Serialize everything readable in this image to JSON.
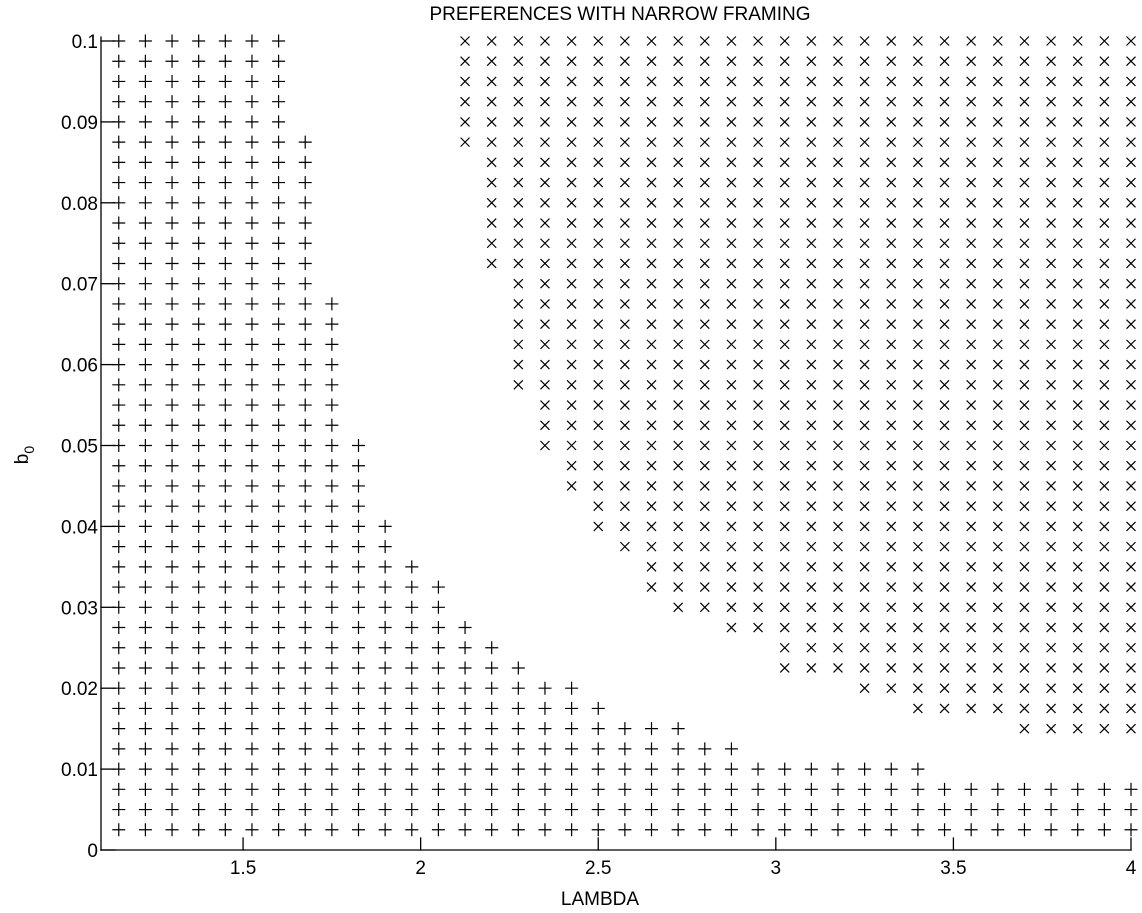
{
  "chart_data": {
    "type": "scatter",
    "title": "PREFERENCES WITH NARROW FRAMING",
    "xlabel": "LAMBDA",
    "ylabel": {
      "main": "b",
      "subscript": "0"
    },
    "xlim": [
      1.1,
      4.0
    ],
    "ylim": [
      0.0,
      0.1
    ],
    "x_ticks": [
      {
        "value": 1.5,
        "label": "1.5"
      },
      {
        "value": 2.0,
        "label": "2"
      },
      {
        "value": 2.5,
        "label": "2.5"
      },
      {
        "value": 3.0,
        "label": "3"
      },
      {
        "value": 3.5,
        "label": "3.5"
      },
      {
        "value": 4.0,
        "label": "4"
      }
    ],
    "y_ticks": [
      {
        "value": 0.0,
        "label": "0"
      },
      {
        "value": 0.01,
        "label": "0.01"
      },
      {
        "value": 0.02,
        "label": "0.02"
      },
      {
        "value": 0.03,
        "label": "0.03"
      },
      {
        "value": 0.04,
        "label": "0.04"
      },
      {
        "value": 0.05,
        "label": "0.05"
      },
      {
        "value": 0.06,
        "label": "0.06"
      },
      {
        "value": 0.07,
        "label": "0.07"
      },
      {
        "value": 0.08,
        "label": "0.08"
      },
      {
        "value": 0.09,
        "label": "0.09"
      },
      {
        "value": 0.1,
        "label": "0.1"
      }
    ],
    "grid": false,
    "legend": "none",
    "grid_x_values": {
      "start": 1.15,
      "step": 0.075,
      "count": 40
    },
    "grid_y_values": {
      "start": 0.0,
      "step": 0.0025,
      "count": 41
    },
    "series": [
      {
        "marker": "plus",
        "rule": "points with b_0 greater than 0 whose lambda is at or below the listed threshold for that b_0 level",
        "lambda_max_by_level": [
          {
            "b0": 0.0025,
            "lambda_max": 4.0
          },
          {
            "b0": 0.005,
            "lambda_max": 4.0
          },
          {
            "b0": 0.0075,
            "lambda_max": 4.0
          },
          {
            "b0": 0.01,
            "lambda_max": 3.4
          },
          {
            "b0": 0.0125,
            "lambda_max": 2.875
          },
          {
            "b0": 0.015,
            "lambda_max": 2.725
          },
          {
            "b0": 0.0175,
            "lambda_max": 2.5
          },
          {
            "b0": 0.02,
            "lambda_max": 2.425
          },
          {
            "b0": 0.0225,
            "lambda_max": 2.275
          },
          {
            "b0": 0.025,
            "lambda_max": 2.2
          },
          {
            "b0": 0.0275,
            "lambda_max": 2.125
          },
          {
            "b0": 0.03,
            "lambda_max": 2.05
          },
          {
            "b0": 0.0325,
            "lambda_max": 2.05
          },
          {
            "b0": 0.035,
            "lambda_max": 1.975
          },
          {
            "b0": 0.0375,
            "lambda_max": 1.9
          },
          {
            "b0": 0.04,
            "lambda_max": 1.9
          },
          {
            "b0": 0.0425,
            "lambda_max": 1.825
          },
          {
            "b0": 0.045,
            "lambda_max": 1.825
          },
          {
            "b0": 0.0475,
            "lambda_max": 1.825
          },
          {
            "b0": 0.05,
            "lambda_max": 1.825
          },
          {
            "b0": 0.0525,
            "lambda_max": 1.75
          },
          {
            "b0": 0.055,
            "lambda_max": 1.75
          },
          {
            "b0": 0.0575,
            "lambda_max": 1.75
          },
          {
            "b0": 0.06,
            "lambda_max": 1.75
          },
          {
            "b0": 0.0625,
            "lambda_max": 1.75
          },
          {
            "b0": 0.065,
            "lambda_max": 1.75
          },
          {
            "b0": 0.0675,
            "lambda_max": 1.75
          },
          {
            "b0": 0.07,
            "lambda_max": 1.675
          },
          {
            "b0": 0.0725,
            "lambda_max": 1.675
          },
          {
            "b0": 0.075,
            "lambda_max": 1.675
          },
          {
            "b0": 0.0775,
            "lambda_max": 1.675
          },
          {
            "b0": 0.08,
            "lambda_max": 1.675
          },
          {
            "b0": 0.0825,
            "lambda_max": 1.675
          },
          {
            "b0": 0.085,
            "lambda_max": 1.675
          },
          {
            "b0": 0.0875,
            "lambda_max": 1.675
          },
          {
            "b0": 0.09,
            "lambda_max": 1.6
          },
          {
            "b0": 0.0925,
            "lambda_max": 1.6
          },
          {
            "b0": 0.095,
            "lambda_max": 1.6
          },
          {
            "b0": 0.0975,
            "lambda_max": 1.6
          },
          {
            "b0": 0.1,
            "lambda_max": 1.6
          }
        ]
      },
      {
        "marker": "cross",
        "rule": "points whose lambda is at or above the listed threshold for that b_0 level",
        "lambda_min_by_level": [
          {
            "b0": 0.015,
            "lambda_min": 3.7
          },
          {
            "b0": 0.0175,
            "lambda_min": 3.4
          },
          {
            "b0": 0.02,
            "lambda_min": 3.25
          },
          {
            "b0": 0.0225,
            "lambda_min": 3.025
          },
          {
            "b0": 0.025,
            "lambda_min": 3.025
          },
          {
            "b0": 0.0275,
            "lambda_min": 2.875
          },
          {
            "b0": 0.03,
            "lambda_min": 2.725
          },
          {
            "b0": 0.0325,
            "lambda_min": 2.65
          },
          {
            "b0": 0.035,
            "lambda_min": 2.65
          },
          {
            "b0": 0.0375,
            "lambda_min": 2.575
          },
          {
            "b0": 0.04,
            "lambda_min": 2.5
          },
          {
            "b0": 0.0425,
            "lambda_min": 2.5
          },
          {
            "b0": 0.045,
            "lambda_min": 2.425
          },
          {
            "b0": 0.0475,
            "lambda_min": 2.425
          },
          {
            "b0": 0.05,
            "lambda_min": 2.35
          },
          {
            "b0": 0.0525,
            "lambda_min": 2.35
          },
          {
            "b0": 0.055,
            "lambda_min": 2.35
          },
          {
            "b0": 0.0575,
            "lambda_min": 2.275
          },
          {
            "b0": 0.06,
            "lambda_min": 2.275
          },
          {
            "b0": 0.0625,
            "lambda_min": 2.275
          },
          {
            "b0": 0.065,
            "lambda_min": 2.275
          },
          {
            "b0": 0.0675,
            "lambda_min": 2.275
          },
          {
            "b0": 0.07,
            "lambda_min": 2.275
          },
          {
            "b0": 0.0725,
            "lambda_min": 2.2
          },
          {
            "b0": 0.075,
            "lambda_min": 2.2
          },
          {
            "b0": 0.0775,
            "lambda_min": 2.2
          },
          {
            "b0": 0.08,
            "lambda_min": 2.2
          },
          {
            "b0": 0.0825,
            "lambda_min": 2.2
          },
          {
            "b0": 0.085,
            "lambda_min": 2.2
          },
          {
            "b0": 0.0875,
            "lambda_min": 2.125
          },
          {
            "b0": 0.09,
            "lambda_min": 2.125
          },
          {
            "b0": 0.0925,
            "lambda_min": 2.125
          },
          {
            "b0": 0.095,
            "lambda_min": 2.125
          },
          {
            "b0": 0.0975,
            "lambda_min": 2.125
          },
          {
            "b0": 0.1,
            "lambda_min": 2.125
          }
        ]
      }
    ]
  }
}
